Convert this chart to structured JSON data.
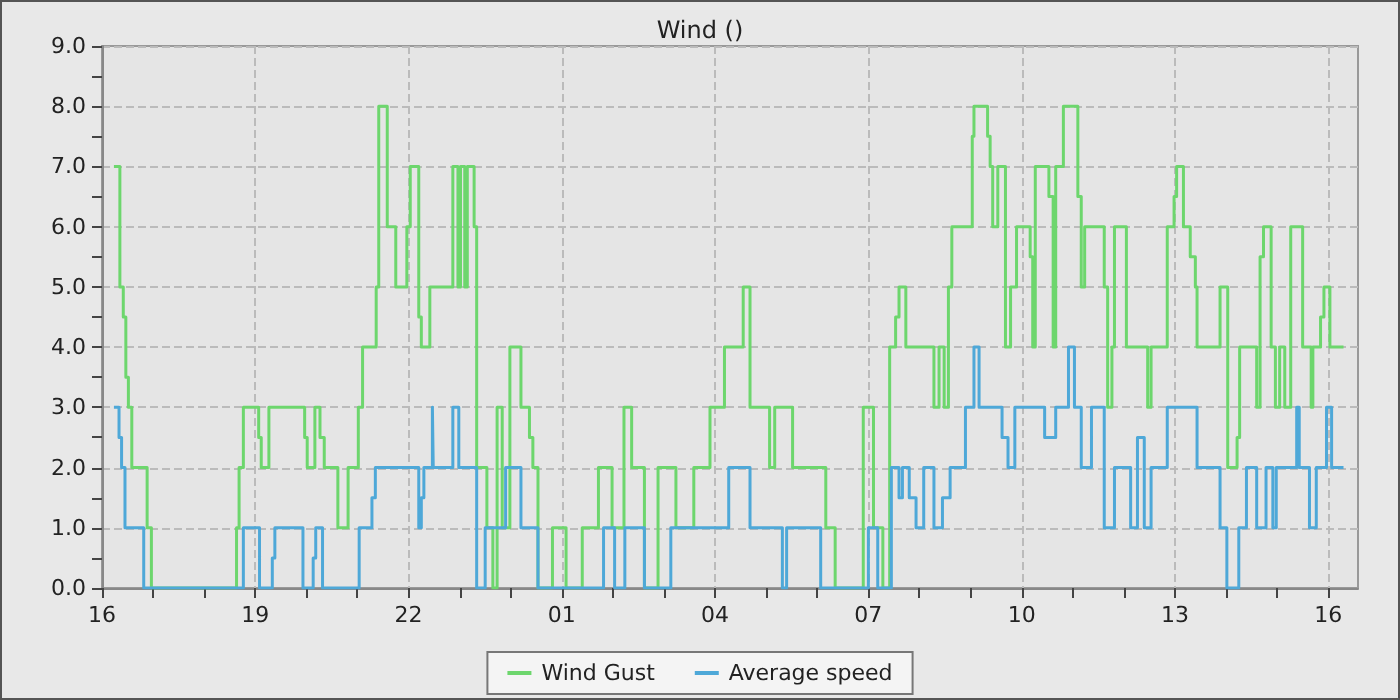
{
  "chart_data": {
    "type": "step",
    "title": "Wind ()",
    "xlim": [
      "--01-01T16:00",
      "--01-02T16:35"
    ],
    "xticks": [
      {
        "value": "--01-01T16:00",
        "label": "16"
      },
      {
        "value": "--01-01T17:00",
        "label": null
      },
      {
        "value": "--01-01T18:00",
        "label": null
      },
      {
        "value": "--01-01T19:00",
        "label": "19"
      },
      {
        "value": "--01-01T20:00",
        "label": null
      },
      {
        "value": "--01-01T21:00",
        "label": null
      },
      {
        "value": "--01-01T22:00",
        "label": "22"
      },
      {
        "value": "--01-01T23:00",
        "label": null
      },
      {
        "value": "--01-02T00:00",
        "label": null
      },
      {
        "value": "--01-02T01:00",
        "label": "01"
      },
      {
        "value": "--01-02T02:00",
        "label": null
      },
      {
        "value": "--01-02T03:00",
        "label": null
      },
      {
        "value": "--01-02T04:00",
        "label": "04"
      },
      {
        "value": "--01-02T05:00",
        "label": null
      },
      {
        "value": "--01-02T06:00",
        "label": null
      },
      {
        "value": "--01-02T07:00",
        "label": "07"
      },
      {
        "value": "--01-02T08:00",
        "label": null
      },
      {
        "value": "--01-02T09:00",
        "label": null
      },
      {
        "value": "--01-02T10:00",
        "label": "10"
      },
      {
        "value": "--01-02T11:00",
        "label": null
      },
      {
        "value": "--01-02T12:00",
        "label": null
      },
      {
        "value": "--01-02T13:00",
        "label": "13"
      },
      {
        "value": "--01-02T14:00",
        "label": null
      },
      {
        "value": "--01-02T15:00",
        "label": null
      },
      {
        "value": "--01-02T16:00",
        "label": "16"
      }
    ],
    "ylim": [
      0,
      9
    ],
    "yticks": [
      {
        "value": 0,
        "label": "0.0"
      },
      {
        "value": 0.5,
        "label": null
      },
      {
        "value": 1,
        "label": "1.0"
      },
      {
        "value": 1.5,
        "label": null
      },
      {
        "value": 2,
        "label": "2.0"
      },
      {
        "value": 2.5,
        "label": null
      },
      {
        "value": 3,
        "label": "3.0"
      },
      {
        "value": 3.5,
        "label": null
      },
      {
        "value": 4,
        "label": "4.0"
      },
      {
        "value": 4.5,
        "label": null
      },
      {
        "value": 5,
        "label": "5.0"
      },
      {
        "value": 5.5,
        "label": null
      },
      {
        "value": 6,
        "label": "6.0"
      },
      {
        "value": 6.5,
        "label": null
      },
      {
        "value": 7,
        "label": "7.0"
      },
      {
        "value": 7.5,
        "label": null
      },
      {
        "value": 8,
        "label": "8.0"
      },
      {
        "value": 8.5,
        "label": null
      },
      {
        "value": 9,
        "label": "9.0"
      }
    ],
    "grid": true,
    "legend": "bottom",
    "line_style": "solid",
    "marker": "none",
    "series": [
      {
        "name": "Wind Gust",
        "color": "#6dd66d",
        "x": [
          "--01-01T16:14",
          "--01-01T16:21",
          "--01-01T16:25",
          "--01-01T16:28",
          "--01-01T16:31",
          "--01-01T16:35",
          "--01-01T16:53",
          "--01-01T16:58",
          "--01-01T18:38",
          "--01-01T18:41",
          "--01-01T18:46",
          "--01-01T19:04",
          "--01-01T19:07",
          "--01-01T19:16",
          "--01-01T19:58",
          "--01-01T20:01",
          "--01-01T20:10",
          "--01-01T20:16",
          "--01-01T20:21",
          "--01-01T20:37",
          "--01-01T20:49",
          "--01-01T21:01",
          "--01-01T21:06",
          "--01-01T21:22",
          "--01-01T21:25",
          "--01-01T21:35",
          "--01-01T21:45",
          "--01-01T21:58",
          "--01-01T22:02",
          "--01-01T22:12",
          "--01-01T22:15",
          "--01-01T22:25",
          "--01-01T22:52",
          "--01-01T22:58",
          "--01-01T23:01",
          "--01-01T23:06",
          "--01-01T23:09",
          "--01-01T23:17",
          "--01-01T23:20",
          "--01-01T23:32",
          "--01-01T23:39",
          "--01-01T23:44",
          "--01-01T23:50",
          "--01-01T23:59",
          "--01-02T00:12",
          "--01-02T00:22",
          "--01-02T00:26",
          "--01-02T00:32",
          "--01-02T00:49",
          "--01-02T01:05",
          "--01-02T01:24",
          "--01-02T01:43",
          "--01-02T01:59",
          "--01-02T02:13",
          "--01-02T02:22",
          "--01-02T02:37",
          "--01-02T02:53",
          "--01-02T03:14",
          "--01-02T03:35",
          "--01-02T03:54",
          "--01-02T04:11",
          "--01-02T04:33",
          "--01-02T04:41",
          "--01-02T05:04",
          "--01-02T05:10",
          "--01-02T05:31",
          "--01-02T06:10",
          "--01-02T06:21",
          "--01-02T06:54",
          "--01-02T07:06",
          "--01-02T07:17",
          "--01-02T07:25",
          "--01-02T07:32",
          "--01-02T07:36",
          "--01-02T07:44",
          "--01-02T08:17",
          "--01-02T08:23",
          "--01-02T08:29",
          "--01-02T08:34",
          "--01-02T08:38",
          "--01-02T09:02",
          "--01-02T09:04",
          "--01-02T09:20",
          "--01-02T09:23",
          "--01-02T09:26",
          "--01-02T09:32",
          "--01-02T09:41",
          "--01-02T09:47",
          "--01-02T09:54",
          "--01-02T10:10",
          "--01-02T10:13",
          "--01-02T10:16",
          "--01-02T10:32",
          "--01-02T10:37",
          "--01-02T10:40",
          "--01-02T10:49",
          "--01-02T11:06",
          "--01-02T11:10",
          "--01-02T11:14",
          "--01-02T11:37",
          "--01-02T11:41",
          "--01-02T11:46",
          "--01-02T11:49",
          "--01-02T12:03",
          "--01-02T12:28",
          "--01-02T12:32",
          "--01-02T12:51",
          "--01-02T12:59",
          "--01-02T13:02",
          "--01-02T13:10",
          "--01-02T13:18",
          "--01-02T13:24",
          "--01-02T13:26",
          "--01-02T13:53",
          "--01-02T14:02",
          "--01-02T14:13",
          "--01-02T14:16",
          "--01-02T14:36",
          "--01-02T14:40",
          "--01-02T14:44",
          "--01-02T14:53",
          "--01-02T14:58",
          "--01-02T15:03",
          "--01-02T15:09",
          "--01-02T15:16",
          "--01-02T15:30",
          "--01-02T15:40",
          "--01-02T15:42",
          "--01-02T15:51",
          "--01-02T15:55",
          "--01-02T16:02",
          "--01-02T16:18"
        ],
        "values": [
          7,
          5,
          4.5,
          3.5,
          3,
          2,
          1,
          0,
          1,
          2,
          3,
          2.5,
          2,
          3,
          2.5,
          2,
          3,
          2.5,
          2,
          1,
          2,
          3,
          4,
          5,
          8,
          6,
          5,
          6,
          7,
          4.5,
          4,
          5,
          7,
          5,
          7,
          5,
          7,
          6,
          2,
          1,
          0,
          3,
          1,
          4,
          3,
          2.5,
          2,
          0,
          1,
          0,
          1,
          2,
          1,
          3,
          2,
          0,
          2,
          1,
          2,
          3,
          4,
          5,
          3,
          2,
          3,
          2,
          1,
          0,
          3,
          1,
          0,
          4,
          4.5,
          5,
          4,
          3,
          4,
          3,
          5,
          6,
          7.5,
          8,
          7.5,
          7,
          6,
          7,
          4,
          5,
          6,
          5.5,
          4,
          7,
          6.5,
          4,
          7,
          8,
          6.5,
          5,
          6,
          5,
          3,
          4,
          6,
          4,
          3,
          4,
          6,
          6.5,
          7,
          6,
          5.5,
          5,
          4,
          5,
          2,
          2.5,
          4,
          3,
          5.5,
          6,
          4,
          3,
          4,
          3,
          6,
          4,
          3,
          4,
          4.5,
          5,
          4,
          4
        ]
      },
      {
        "name": "Average speed",
        "color": "#4ea8d8",
        "x": [
          "--01-01T16:14",
          "--01-01T16:20",
          "--01-01T16:23",
          "--01-01T16:27",
          "--01-01T16:49",
          "--01-01T18:46",
          "--01-01T19:05",
          "--01-01T19:20",
          "--01-01T19:23",
          "--01-01T19:56",
          "--01-01T20:08",
          "--01-01T20:11",
          "--01-01T20:19",
          "--01-01T21:02",
          "--01-01T21:17",
          "--01-01T21:21",
          "--01-01T22:12",
          "--01-01T22:15",
          "--01-01T22:18",
          "--01-01T22:28",
          "--01-01T22:29",
          "--01-01T22:52",
          "--01-01T22:59",
          "--01-01T23:20",
          "--01-01T23:30",
          "--01-01T23:54",
          "--01-02T00:12",
          "--01-02T00:32",
          "--01-02T01:49",
          "--01-02T02:02",
          "--01-02T02:14",
          "--01-02T02:37",
          "--01-02T03:08",
          "--01-02T04:16",
          "--01-02T04:41",
          "--01-02T05:19",
          "--01-02T05:24",
          "--01-02T06:04",
          "--01-02T07:00",
          "--01-02T07:11",
          "--01-02T07:27",
          "--01-02T07:36",
          "--01-02T07:40",
          "--01-02T07:48",
          "--01-02T07:56",
          "--01-02T08:05",
          "--01-02T08:17",
          "--01-02T08:27",
          "--01-02T08:36",
          "--01-02T08:54",
          "--01-02T09:04",
          "--01-02T09:10",
          "--01-02T09:37",
          "--01-02T09:44",
          "--01-02T09:52",
          "--01-02T10:27",
          "--01-02T10:40",
          "--01-02T10:55",
          "--01-02T11:02",
          "--01-02T11:10",
          "--01-02T11:22",
          "--01-02T11:37",
          "--01-02T11:49",
          "--01-02T12:08",
          "--01-02T12:16",
          "--01-02T12:24",
          "--01-02T12:32",
          "--01-02T12:51",
          "--01-02T13:26",
          "--01-02T13:53",
          "--01-02T14:01",
          "--01-02T14:15",
          "--01-02T14:24",
          "--01-02T14:36",
          "--01-02T14:47",
          "--01-02T14:55",
          "--01-02T14:59",
          "--01-02T15:23",
          "--01-02T15:26",
          "--01-02T15:38",
          "--01-02T15:46",
          "--01-02T15:58",
          "--01-02T16:04",
          "--01-02T16:18"
        ],
        "values": [
          3,
          2.5,
          2,
          1,
          0,
          1,
          0,
          0.5,
          1,
          0,
          0.5,
          1,
          0,
          1,
          1.5,
          2,
          1,
          1.5,
          2,
          3,
          2,
          3,
          2,
          0,
          1,
          2,
          1,
          0,
          1,
          0,
          1,
          0,
          1,
          2,
          1,
          0,
          1,
          0,
          1,
          0,
          2,
          1.5,
          2,
          1.5,
          1,
          2,
          1,
          1.5,
          2,
          3,
          4,
          3,
          2.5,
          2,
          3,
          2.5,
          3,
          4,
          3,
          2,
          3,
          1,
          2,
          1,
          2.5,
          1,
          2,
          3,
          2,
          1,
          0,
          1,
          2,
          1,
          2,
          1,
          2,
          3,
          2,
          1,
          2,
          3,
          2,
          2
        ]
      }
    ]
  }
}
